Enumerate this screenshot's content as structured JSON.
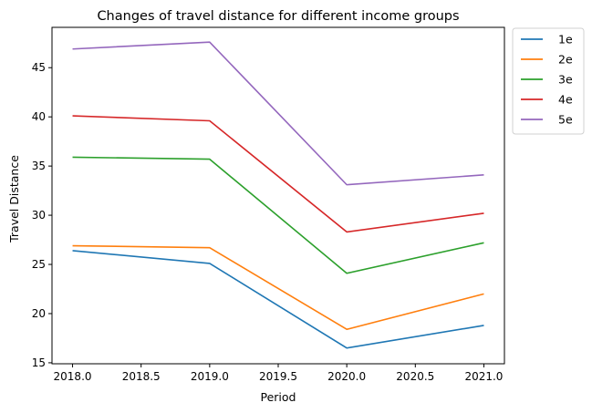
{
  "chart_data": {
    "type": "line",
    "title": "Changes of travel distance for different income groups",
    "xlabel": "Period",
    "ylabel": "Travel Distance",
    "x": [
      2018,
      2019,
      2020,
      2021
    ],
    "xlim": [
      2017.85,
      2021.15
    ],
    "ylim": [
      14.9,
      49.1
    ],
    "xticks": [
      2018.0,
      2018.5,
      2019.0,
      2019.5,
      2020.0,
      2020.5,
      2021.0
    ],
    "xtick_labels": [
      "2018.0",
      "2018.5",
      "2019.0",
      "2019.5",
      "2020.0",
      "2020.5",
      "2021.0"
    ],
    "yticks": [
      15,
      20,
      25,
      30,
      35,
      40,
      45
    ],
    "ytick_labels": [
      "15",
      "20",
      "25",
      "30",
      "35",
      "40",
      "45"
    ],
    "grid": false,
    "legend_position": "outside-top-right",
    "series": [
      {
        "name": "1e",
        "color": "#1f77b4",
        "values": [
          26.4,
          25.1,
          16.5,
          18.8
        ]
      },
      {
        "name": "2e",
        "color": "#ff7f0e",
        "values": [
          26.9,
          26.7,
          18.4,
          22.0
        ]
      },
      {
        "name": "3e",
        "color": "#2ca02c",
        "values": [
          35.9,
          35.7,
          24.1,
          27.2
        ]
      },
      {
        "name": "4e",
        "color": "#d62728",
        "values": [
          40.1,
          39.6,
          28.3,
          30.2
        ]
      },
      {
        "name": "5e",
        "color": "#9467bd",
        "values": [
          46.9,
          47.6,
          33.1,
          34.1
        ]
      }
    ]
  }
}
